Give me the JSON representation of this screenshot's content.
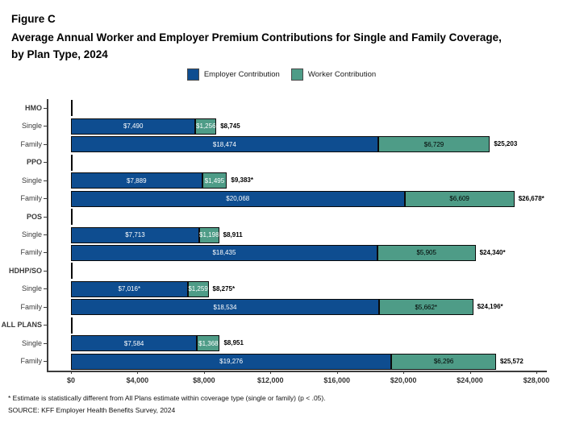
{
  "figure_label": "Figure C",
  "title_line1": "Average Annual Worker and Employer Premium Contributions for Single and Family Coverage,",
  "title_line2": "by Plan Type, 2024",
  "legend": [
    {
      "label": "Employer Contribution",
      "color": "#0E4D90"
    },
    {
      "label": "Worker Contribution",
      "color": "#4E9C87"
    }
  ],
  "footnote": "* Estimate is statistically different from All Plans estimate within coverage type (single or family) (p < .05).",
  "source": "SOURCE: KFF Employer Health Benefits Survey, 2024",
  "chart_data": {
    "type": "bar",
    "orientation": "horizontal",
    "stacked": true,
    "grid": false,
    "legend_position": "top",
    "series_names": [
      "Employer Contribution",
      "Worker Contribution"
    ],
    "colors": {
      "employer": "#0E4D90",
      "worker": "#4E9C87"
    },
    "x_axis": {
      "min": 0,
      "max": 28000,
      "step": 4000,
      "ticks": [
        "$0",
        "$4,000",
        "$8,000",
        "$12,000",
        "$16,000",
        "$20,000",
        "$24,000",
        "$28,000"
      ]
    },
    "groups": [
      {
        "label": "HMO",
        "rows": [
          {
            "label": "Single",
            "employer": 7490,
            "worker": 1256,
            "employer_label": "$7,490",
            "worker_label": "$1,256",
            "total_label": "$8,745",
            "worker_label_color": "#FFFFFF"
          },
          {
            "label": "Family",
            "employer": 18474,
            "worker": 6729,
            "employer_label": "$18,474",
            "worker_label": "$6,729",
            "total_label": "$25,203",
            "worker_label_color": "#000000"
          }
        ]
      },
      {
        "label": "PPO",
        "rows": [
          {
            "label": "Single",
            "employer": 7889,
            "worker": 1495,
            "employer_label": "$7,889",
            "worker_label": "$1,495",
            "total_label": "$9,383*",
            "worker_label_color": "#FFFFFF"
          },
          {
            "label": "Family",
            "employer": 20068,
            "worker": 6609,
            "employer_label": "$20,068",
            "worker_label": "$6,609",
            "total_label": "$26,678*",
            "worker_label_color": "#000000"
          }
        ]
      },
      {
        "label": "POS",
        "rows": [
          {
            "label": "Single",
            "employer": 7713,
            "worker": 1198,
            "employer_label": "$7,713",
            "worker_label": "$1,198",
            "total_label": "$8,911",
            "worker_label_color": "#FFFFFF"
          },
          {
            "label": "Family",
            "employer": 18435,
            "worker": 5905,
            "employer_label": "$18,435",
            "worker_label": "$5,905",
            "total_label": "$24,340*",
            "worker_label_color": "#000000"
          }
        ]
      },
      {
        "label": "HDHP/SO",
        "rows": [
          {
            "label": "Single",
            "employer": 7016,
            "worker": 1259,
            "employer_label": "$7,016*",
            "worker_label": "$1,259",
            "total_label": "$8,275*",
            "worker_label_color": "#FFFFFF"
          },
          {
            "label": "Family",
            "employer": 18534,
            "worker": 5662,
            "employer_label": "$18,534",
            "worker_label": "$5,662*",
            "total_label": "$24,196*",
            "worker_label_color": "#000000"
          }
        ]
      },
      {
        "label": "ALL PLANS",
        "rows": [
          {
            "label": "Single",
            "employer": 7584,
            "worker": 1368,
            "employer_label": "$7,584",
            "worker_label": "$1,368",
            "total_label": "$8,951",
            "worker_label_color": "#FFFFFF"
          },
          {
            "label": "Family",
            "employer": 19276,
            "worker": 6296,
            "employer_label": "$19,276",
            "worker_label": "$6,296",
            "total_label": "$25,572",
            "worker_label_color": "#000000"
          }
        ]
      }
    ]
  }
}
